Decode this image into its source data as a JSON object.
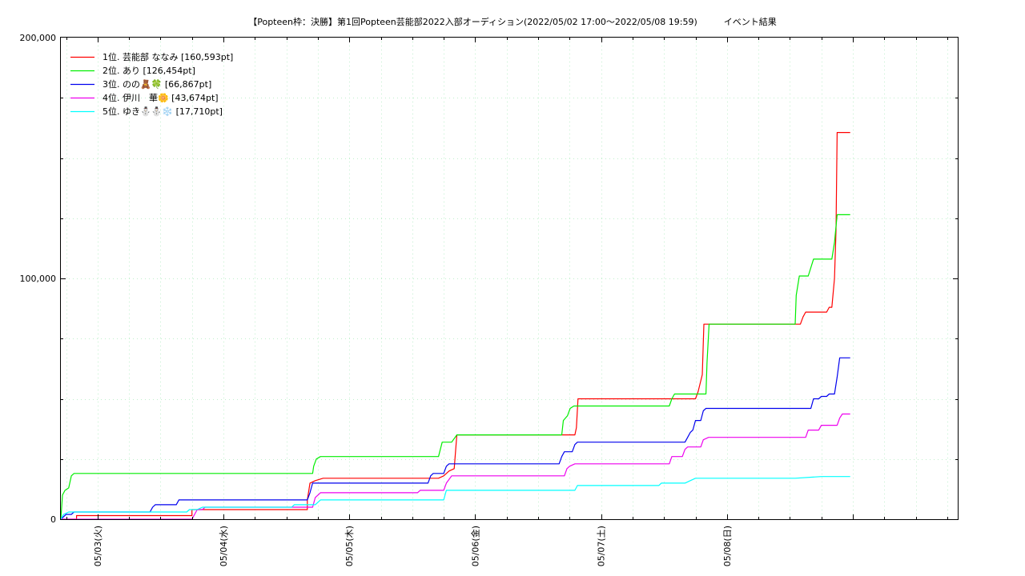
{
  "chart_data": {
    "type": "line",
    "title": "【Popteen枠：決勝】第1回Popteen芸能部2022入部オーディション(2022/05/02 17:00～2022/05/08 19:59)　　　イベント結果",
    "xlabel": "",
    "ylabel": "",
    "x_start": "2022/05/02 17:00",
    "x_end": "2022/05/08 19:59",
    "xlim_hours": [
      0,
      171
    ],
    "ylim": [
      0,
      200000
    ],
    "y_ticks": [
      {
        "value": 0,
        "label": "0"
      },
      {
        "value": 100000,
        "label": "100,000"
      },
      {
        "value": 200000,
        "label": "200,000"
      }
    ],
    "x_ticks": [
      {
        "hour": 7,
        "label": "05/03(火)"
      },
      {
        "hour": 31,
        "label": "05/04(水)"
      },
      {
        "hour": 55,
        "label": "05/05(木)"
      },
      {
        "hour": 79,
        "label": "05/06(金)"
      },
      {
        "hour": 103,
        "label": "05/07(土)"
      },
      {
        "hour": 127,
        "label": "05/08(日)"
      }
    ],
    "grid": true,
    "legend_position": "top-left",
    "series": [
      {
        "name": "1位. 芸能部 ななみ [160,593pt]",
        "color": "#ff0000",
        "points": [
          [
            0,
            0
          ],
          [
            3,
            0
          ],
          [
            3,
            1500
          ],
          [
            25,
            1500
          ],
          [
            25,
            4000
          ],
          [
            47,
            4000
          ],
          [
            47,
            8000
          ],
          [
            47.5,
            15000
          ],
          [
            48.5,
            16000
          ],
          [
            50,
            17000
          ],
          [
            72,
            17000
          ],
          [
            73,
            18000
          ],
          [
            74,
            20000
          ],
          [
            75,
            21000
          ],
          [
            75.5,
            35000
          ],
          [
            98,
            35000
          ],
          [
            98.3,
            38000
          ],
          [
            98.6,
            50000
          ],
          [
            121,
            50000
          ],
          [
            121.5,
            53000
          ],
          [
            122.3,
            60000
          ],
          [
            122.6,
            81000
          ],
          [
            141,
            81000
          ],
          [
            141.5,
            84000
          ],
          [
            142,
            86000
          ],
          [
            146,
            86000
          ],
          [
            146.5,
            88000
          ],
          [
            147,
            88000
          ],
          [
            147.5,
            100000
          ],
          [
            147.8,
            120000
          ],
          [
            148,
            160593
          ],
          [
            150.5,
            160593
          ]
        ]
      },
      {
        "name": "2位. あり [126,454pt]",
        "color": "#00ee00",
        "points": [
          [
            0,
            0
          ],
          [
            0.3,
            10000
          ],
          [
            0.8,
            12000
          ],
          [
            1.5,
            13000
          ],
          [
            2,
            18000
          ],
          [
            2.5,
            19000
          ],
          [
            48,
            19000
          ],
          [
            48.2,
            22000
          ],
          [
            48.7,
            25000
          ],
          [
            49.5,
            26000
          ],
          [
            72,
            26000
          ],
          [
            72.7,
            32000
          ],
          [
            74.5,
            32000
          ],
          [
            75.5,
            35000
          ],
          [
            95.5,
            35000
          ],
          [
            95.8,
            41000
          ],
          [
            96.6,
            43000
          ],
          [
            97.1,
            46000
          ],
          [
            97.8,
            47000
          ],
          [
            116,
            47000
          ],
          [
            116.5,
            50000
          ],
          [
            117,
            52000
          ],
          [
            123,
            52000
          ],
          [
            123.2,
            65000
          ],
          [
            123.6,
            81000
          ],
          [
            140,
            81000
          ],
          [
            140.2,
            93000
          ],
          [
            140.8,
            101000
          ],
          [
            142.5,
            101000
          ],
          [
            143.5,
            108000
          ],
          [
            147,
            108000
          ],
          [
            147.5,
            115000
          ],
          [
            148,
            126454
          ],
          [
            150.5,
            126454
          ]
        ]
      },
      {
        "name": "3位. のの🧸🍀 [66,867pt]",
        "color": "#0000ee",
        "points": [
          [
            0,
            0
          ],
          [
            1,
            2000
          ],
          [
            2,
            2000
          ],
          [
            2.5,
            3000
          ],
          [
            17,
            3000
          ],
          [
            17.5,
            5000
          ],
          [
            18,
            6000
          ],
          [
            22,
            6000
          ],
          [
            22.5,
            8000
          ],
          [
            47,
            8000
          ],
          [
            47.5,
            11000
          ],
          [
            48,
            15000
          ],
          [
            50,
            15000
          ],
          [
            70,
            15000
          ],
          [
            70.5,
            18000
          ],
          [
            71,
            19000
          ],
          [
            73,
            19000
          ],
          [
            73.5,
            22000
          ],
          [
            74,
            23000
          ],
          [
            95,
            23000
          ],
          [
            95.5,
            26000
          ],
          [
            96,
            28000
          ],
          [
            97.5,
            28000
          ],
          [
            98,
            31000
          ],
          [
            98.5,
            32000
          ],
          [
            119,
            32000
          ],
          [
            119.5,
            34000
          ],
          [
            120,
            36000
          ],
          [
            120.5,
            37000
          ],
          [
            121,
            41000
          ],
          [
            122,
            41000
          ],
          [
            122.5,
            45000
          ],
          [
            123,
            46000
          ],
          [
            143,
            46000
          ],
          [
            143.5,
            50000
          ],
          [
            144.5,
            50000
          ],
          [
            145,
            51000
          ],
          [
            146,
            51000
          ],
          [
            146.5,
            52000
          ],
          [
            147.5,
            52000
          ],
          [
            148,
            59000
          ],
          [
            148.5,
            67000
          ],
          [
            150.5,
            67000
          ]
        ]
      },
      {
        "name": "4位. 伊川　華🌼 [43,674pt]",
        "color": "#ee00ee",
        "points": [
          [
            0,
            0
          ],
          [
            25,
            0
          ],
          [
            25.5,
            2000
          ],
          [
            26,
            4000
          ],
          [
            27,
            4000
          ],
          [
            27.5,
            5000
          ],
          [
            48,
            5000
          ],
          [
            48.5,
            9000
          ],
          [
            49.5,
            11000
          ],
          [
            68,
            11000
          ],
          [
            68.5,
            12000
          ],
          [
            73,
            12000
          ],
          [
            73.5,
            15000
          ],
          [
            74.5,
            18000
          ],
          [
            96,
            18000
          ],
          [
            96.5,
            21000
          ],
          [
            97,
            22000
          ],
          [
            98,
            23000
          ],
          [
            116,
            23000
          ],
          [
            116.5,
            26000
          ],
          [
            118.5,
            26000
          ],
          [
            119,
            29000
          ],
          [
            119.5,
            30000
          ],
          [
            122,
            30000
          ],
          [
            122.5,
            33000
          ],
          [
            123.5,
            34000
          ],
          [
            142,
            34000
          ],
          [
            142.5,
            37000
          ],
          [
            144.5,
            37000
          ],
          [
            145,
            39000
          ],
          [
            148,
            39000
          ],
          [
            148.5,
            42000
          ],
          [
            149,
            43674
          ],
          [
            150.5,
            43674
          ]
        ]
      },
      {
        "name": "5位. ゆき⛄⛄❄️ [17,710pt]",
        "color": "#00ffff",
        "points": [
          [
            0,
            0
          ],
          [
            0.5,
            2000
          ],
          [
            1.5,
            3000
          ],
          [
            24,
            3000
          ],
          [
            24.5,
            4000
          ],
          [
            26,
            4000
          ],
          [
            27,
            5000
          ],
          [
            44,
            5000
          ],
          [
            44.5,
            6000
          ],
          [
            48.5,
            6000
          ],
          [
            49.5,
            8000
          ],
          [
            73,
            8000
          ],
          [
            73.5,
            12000
          ],
          [
            98,
            12000
          ],
          [
            98.5,
            14000
          ],
          [
            114,
            14000
          ],
          [
            114.5,
            15000
          ],
          [
            119,
            15000
          ],
          [
            120,
            16000
          ],
          [
            121,
            17000
          ],
          [
            140,
            17000
          ],
          [
            145,
            17710
          ],
          [
            150.5,
            17710
          ]
        ]
      }
    ]
  }
}
